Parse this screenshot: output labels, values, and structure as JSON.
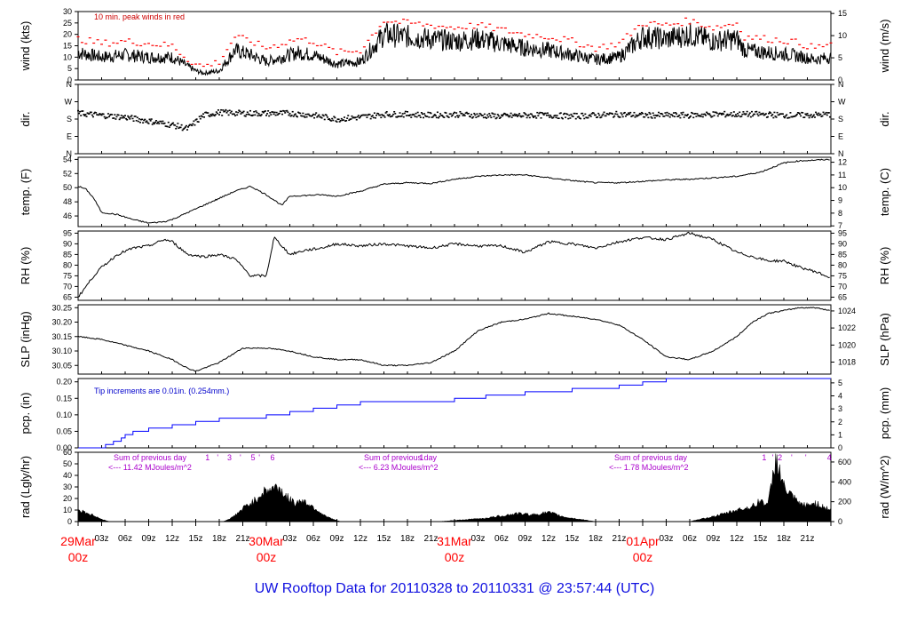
{
  "title": "UW Rooftop Data for 20110328  to  20110331 @ 23:57:44  (UTC)",
  "colors": {
    "wind_peak": "#ff0000",
    "precip": "#0000ff",
    "rad_note": "#aa00cc",
    "day_label": "#ff0000",
    "title": "#1010e0",
    "line": "#000000"
  },
  "x_axis": {
    "hour_labels": [
      "03z",
      "06z",
      "09z",
      "12z",
      "15z",
      "18z",
      "21z"
    ],
    "days": [
      {
        "line1": "29Mar",
        "line2": "00z"
      },
      {
        "line1": "30Mar",
        "line2": "00z"
      },
      {
        "line1": "31Mar",
        "line2": "00z"
      },
      {
        "line1": "01Apr",
        "line2": "00z"
      }
    ]
  },
  "panels": {
    "wind": {
      "left_label": "wind (kts)",
      "right_label": "wind (m/s)",
      "left_ticks": [
        "0",
        "5",
        "10",
        "15",
        "20",
        "25",
        "30"
      ],
      "right_ticks": [
        "0",
        "5",
        "10",
        "15"
      ],
      "note": "10 min. peak winds in red"
    },
    "dir": {
      "left_label": "dir.",
      "right_label": "dir.",
      "ticks": [
        "N",
        "E",
        "S",
        "W",
        "N"
      ]
    },
    "temp": {
      "left_label": "temp. (F)",
      "right_label": "temp. (C)",
      "left_ticks": [
        "46",
        "48",
        "50",
        "52",
        "54"
      ],
      "right_ticks": [
        "7",
        "8",
        "9",
        "10",
        "11",
        "12"
      ]
    },
    "rh": {
      "left_label": "RH (%)",
      "right_label": "RH (%)",
      "ticks": [
        "65",
        "70",
        "75",
        "80",
        "85",
        "90",
        "95"
      ]
    },
    "slp": {
      "left_label": "SLP (inHg)",
      "right_label": "SLP (hPa)",
      "left_ticks": [
        "30.05",
        "30.10",
        "30.15",
        "30.20",
        "30.25"
      ],
      "right_ticks": [
        "1018",
        "1020",
        "1022",
        "1024"
      ]
    },
    "pcp": {
      "left_label": "pcp. (in)",
      "right_label": "pcp. (mm)",
      "left_ticks": [
        "0.00",
        "0.05",
        "0.10",
        "0.15",
        "0.20"
      ],
      "right_ticks": [
        "0",
        "1",
        "2",
        "3",
        "4",
        "5"
      ],
      "note": "Tip increments are 0.01in. (0.254mm.)"
    },
    "rad": {
      "left_label": "rad (Lgly/hr)",
      "right_label": "rad (W/m^2)",
      "left_ticks": [
        "0",
        "10",
        "20",
        "30",
        "40",
        "50",
        "60"
      ],
      "right_ticks": [
        "0",
        "200",
        "400",
        "600"
      ],
      "sums": [
        {
          "line1": "Sum of previous day",
          "line2": "<--- 11.42 MJoules/m^2"
        },
        {
          "line1": "Sum of previous day",
          "line2": "<--- 6.23 MJoules/m^2"
        },
        {
          "line1": "Sum of previous day",
          "line2": "<--- 1.78 MJoules/m^2"
        }
      ],
      "markers": [
        {
          "hour": 16.5,
          "label": "1"
        },
        {
          "hour": 17.8,
          "label": "'"
        },
        {
          "hour": 19.3,
          "label": "3"
        },
        {
          "hour": 20.7,
          "label": "'"
        },
        {
          "hour": 22.3,
          "label": "5"
        },
        {
          "hour": 23.1,
          "label": "'"
        },
        {
          "hour": 24.8,
          "label": "6"
        },
        {
          "hour": 43.8,
          "label": "1"
        },
        {
          "hour": 87.5,
          "label": "1"
        },
        {
          "hour": 88.6,
          "label": "'"
        },
        {
          "hour": 89.5,
          "label": "2"
        },
        {
          "hour": 91.0,
          "label": "'"
        },
        {
          "hour": 92.8,
          "label": "'"
        },
        {
          "hour": 95.8,
          "label": "4"
        }
      ]
    }
  },
  "chart_data": [
    {
      "type": "line",
      "panel": "wind",
      "xlabel": "",
      "ylabel": "wind (kts)",
      "ylim": [
        0,
        30
      ],
      "x_unit": "hours since 29Mar 00z",
      "xlim": [
        0,
        96
      ],
      "series": [
        {
          "name": "wind",
          "x": [
            0,
            3,
            6,
            9,
            12,
            13,
            14,
            15,
            16,
            18,
            20,
            21,
            22,
            24,
            26,
            28,
            30,
            33,
            36,
            39,
            42,
            45,
            48,
            51,
            54,
            57,
            60,
            63,
            66,
            69,
            72,
            75,
            78,
            81,
            84,
            85,
            88,
            91,
            94,
            96
          ],
          "y": [
            12,
            10,
            11,
            10,
            10,
            8,
            6,
            4,
            3,
            4,
            13,
            12,
            11,
            8,
            10,
            12,
            11,
            7,
            8,
            20,
            19,
            18,
            17,
            18,
            16,
            14,
            13,
            11,
            9,
            10,
            19,
            18,
            20,
            17,
            18,
            13,
            12,
            11,
            9,
            10
          ]
        },
        {
          "name": "10 min. peak winds in red",
          "x": [
            0,
            3,
            6,
            9,
            12,
            13,
            14,
            15,
            16,
            18,
            20,
            21,
            22,
            24,
            26,
            28,
            30,
            33,
            36,
            39,
            42,
            45,
            48,
            51,
            54,
            57,
            60,
            63,
            66,
            69,
            72,
            75,
            78,
            81,
            84,
            85,
            88,
            91,
            94,
            96
          ],
          "y": [
            18,
            16,
            17,
            16,
            15,
            12,
            9,
            7,
            6,
            8,
            19,
            18,
            17,
            14,
            16,
            18,
            17,
            12,
            13,
            26,
            25,
            24,
            23,
            24,
            22,
            20,
            19,
            17,
            14,
            16,
            25,
            24,
            26,
            23,
            25,
            19,
            18,
            17,
            14,
            16
          ]
        }
      ]
    },
    {
      "type": "scatter",
      "panel": "dir",
      "ylabel": "dir.",
      "ylim": [
        0,
        360
      ],
      "y_ticks_deg": [
        0,
        90,
        180,
        270,
        360
      ],
      "xlim": [
        0,
        96
      ],
      "series": [
        {
          "name": "direction_deg",
          "x": [
            0,
            3,
            6,
            9,
            12,
            14,
            16,
            18,
            21,
            24,
            27,
            30,
            33,
            36,
            39,
            42,
            45,
            48,
            51,
            54,
            57,
            60,
            63,
            66,
            69,
            72,
            75,
            78,
            81,
            84,
            87,
            90,
            93,
            96
          ],
          "y": [
            210,
            200,
            190,
            170,
            150,
            130,
            200,
            215,
            210,
            210,
            210,
            200,
            180,
            190,
            205,
            205,
            200,
            205,
            200,
            195,
            200,
            200,
            195,
            200,
            205,
            200,
            200,
            200,
            205,
            205,
            205,
            200,
            200,
            205
          ]
        }
      ]
    },
    {
      "type": "line",
      "panel": "temp",
      "ylabel": "temp. (F)",
      "ylim": [
        44.5,
        54.3
      ],
      "xlim": [
        0,
        96
      ],
      "series": [
        {
          "name": "temp",
          "x": [
            0,
            1,
            2,
            3,
            5,
            7,
            9,
            11,
            12,
            14,
            16,
            18,
            20,
            22,
            24,
            26,
            27,
            29,
            31,
            33,
            36,
            39,
            42,
            45,
            48,
            51,
            54,
            57,
            60,
            63,
            66,
            69,
            72,
            75,
            78,
            81,
            84,
            87,
            90,
            92,
            94,
            96
          ],
          "y": [
            50.2,
            49.8,
            48.5,
            46.5,
            46.2,
            45.5,
            45.0,
            45.2,
            45.5,
            46.5,
            47.5,
            48.5,
            49.5,
            50.2,
            49.0,
            47.5,
            48.8,
            48.9,
            49.0,
            48.8,
            49.5,
            50.5,
            50.7,
            50.6,
            51.2,
            51.6,
            51.8,
            51.8,
            51.4,
            51.0,
            50.7,
            50.7,
            50.9,
            51.1,
            51.2,
            51.4,
            51.6,
            52.2,
            53.5,
            53.8,
            53.9,
            54.0
          ]
        }
      ]
    },
    {
      "type": "line",
      "panel": "rh",
      "ylabel": "RH (%)",
      "ylim": [
        65,
        96
      ],
      "xlim": [
        0,
        96
      ],
      "series": [
        {
          "name": "RH",
          "x": [
            0,
            1,
            2,
            3,
            5,
            7,
            9,
            11,
            12,
            14,
            16,
            18,
            20,
            22,
            24,
            25,
            27,
            29,
            31,
            33,
            36,
            39,
            42,
            45,
            48,
            51,
            54,
            57,
            60,
            63,
            66,
            69,
            72,
            75,
            78,
            81,
            84,
            86,
            88,
            90,
            92,
            94,
            96
          ],
          "y": [
            65,
            70,
            75,
            79,
            85,
            88,
            89,
            92,
            91,
            85,
            84,
            85,
            83,
            75,
            75,
            93,
            85,
            87,
            88,
            90,
            89,
            90,
            89,
            88,
            90,
            89,
            89,
            86,
            91,
            90,
            88,
            91,
            93,
            92,
            95,
            92,
            86,
            84,
            82,
            82,
            79,
            77,
            74
          ]
        }
      ]
    },
    {
      "type": "line",
      "panel": "slp",
      "ylabel": "SLP (inHg)",
      "ylim": [
        30.02,
        30.26
      ],
      "xlim": [
        0,
        96
      ],
      "series": [
        {
          "name": "SLP",
          "x": [
            0,
            3,
            6,
            9,
            12,
            14,
            15,
            18,
            21,
            24,
            27,
            30,
            33,
            36,
            39,
            42,
            45,
            48,
            51,
            54,
            57,
            60,
            63,
            66,
            69,
            72,
            75,
            78,
            81,
            84,
            86,
            88,
            90,
            92,
            94,
            96
          ],
          "y": [
            30.15,
            30.14,
            30.12,
            30.1,
            30.07,
            30.04,
            30.03,
            30.06,
            30.11,
            30.11,
            30.1,
            30.08,
            30.07,
            30.07,
            30.05,
            30.05,
            30.06,
            30.1,
            30.17,
            30.2,
            30.21,
            30.23,
            30.22,
            30.21,
            30.19,
            30.14,
            30.08,
            30.07,
            30.1,
            30.15,
            30.2,
            30.23,
            30.24,
            30.25,
            30.25,
            30.24
          ]
        }
      ]
    },
    {
      "type": "line",
      "panel": "pcp",
      "ylabel": "pcp. (in)",
      "ylim": [
        0,
        0.21
      ],
      "xlim": [
        0,
        96
      ],
      "series": [
        {
          "name": "cumulative precipitation",
          "x": [
            0,
            3,
            3.5,
            4.5,
            5.5,
            6,
            7,
            9,
            12,
            15,
            18,
            24,
            27,
            30,
            33,
            36,
            39,
            42,
            45,
            48,
            52,
            57,
            60,
            63,
            66,
            69,
            72,
            75,
            78,
            81,
            84,
            87,
            90,
            93,
            96
          ],
          "y": [
            0,
            0,
            0.01,
            0.02,
            0.03,
            0.04,
            0.05,
            0.06,
            0.07,
            0.08,
            0.09,
            0.1,
            0.11,
            0.12,
            0.13,
            0.14,
            0.14,
            0.14,
            0.14,
            0.15,
            0.16,
            0.17,
            0.17,
            0.18,
            0.18,
            0.19,
            0.2,
            0.21,
            0.21,
            0.21,
            0.21,
            0.21,
            0.21,
            0.21,
            0.21
          ]
        }
      ]
    },
    {
      "type": "area",
      "panel": "rad",
      "ylabel": "rad (Lgly/hr)",
      "ylim": [
        0,
        60
      ],
      "xlim": [
        0,
        96
      ],
      "series": [
        {
          "name": "radiation",
          "x": [
            0,
            1,
            2,
            3,
            4,
            18,
            19,
            20,
            21,
            22,
            23,
            24,
            25,
            26,
            27,
            28,
            29,
            30,
            31,
            32,
            33,
            34,
            35,
            36,
            37,
            38,
            39,
            40,
            41,
            42,
            43,
            44,
            45,
            46,
            47,
            48,
            49,
            50,
            51,
            52,
            53,
            54,
            55,
            56,
            57,
            58,
            59,
            60,
            61,
            62,
            63,
            64,
            65,
            66,
            67,
            68,
            69,
            70,
            71,
            72,
            73,
            74,
            75,
            76,
            77,
            78,
            79,
            80,
            81,
            82,
            83,
            84,
            85,
            86,
            87,
            88,
            89,
            90,
            91,
            92,
            93,
            94,
            95,
            96
          ],
          "y": [
            10,
            8,
            5,
            2,
            0,
            0,
            0,
            0,
            0,
            0,
            0,
            0,
            0,
            0,
            0,
            0,
            0,
            0,
            0,
            0,
            0,
            0,
            0,
            0,
            0,
            0,
            0,
            0,
            0,
            0,
            0,
            0,
            0,
            0,
            0,
            0,
            0,
            0,
            0,
            0,
            0,
            0,
            0,
            0,
            0,
            0,
            0,
            0,
            0,
            0,
            0,
            0,
            0,
            0,
            0,
            0,
            0,
            0,
            0,
            0,
            0,
            0,
            0,
            0,
            0,
            0,
            0,
            0,
            0,
            0,
            0,
            0,
            0,
            0,
            0,
            0,
            0,
            0,
            0,
            0,
            0,
            0,
            0,
            0
          ]
        },
        {
          "name": "radiation_day1",
          "x": [
            18.5,
            19.5,
            20.5,
            21.5,
            22.5,
            23.5,
            24.5,
            25.5,
            26.5,
            27.5,
            28.5,
            29.5,
            30.5,
            31.5,
            32.5,
            33.5
          ],
          "y": [
            0,
            3,
            8,
            14,
            18,
            25,
            28,
            30,
            22,
            16,
            18,
            15,
            10,
            5,
            2,
            0
          ]
        },
        {
          "name": "radiation_day2",
          "x": [
            46,
            48,
            50,
            52,
            54,
            56,
            58,
            60,
            62,
            64,
            66
          ],
          "y": [
            0,
            1,
            2,
            3,
            5,
            7,
            6,
            8,
            4,
            2,
            0
          ]
        },
        {
          "name": "radiation_day3",
          "x": [
            78,
            80,
            82,
            84,
            86,
            87,
            88,
            89,
            90,
            91,
            92,
            93,
            94,
            95,
            96
          ],
          "y": [
            0,
            3,
            6,
            10,
            13,
            18,
            15,
            55,
            30,
            22,
            15,
            14,
            16,
            13,
            10
          ]
        }
      ]
    }
  ]
}
